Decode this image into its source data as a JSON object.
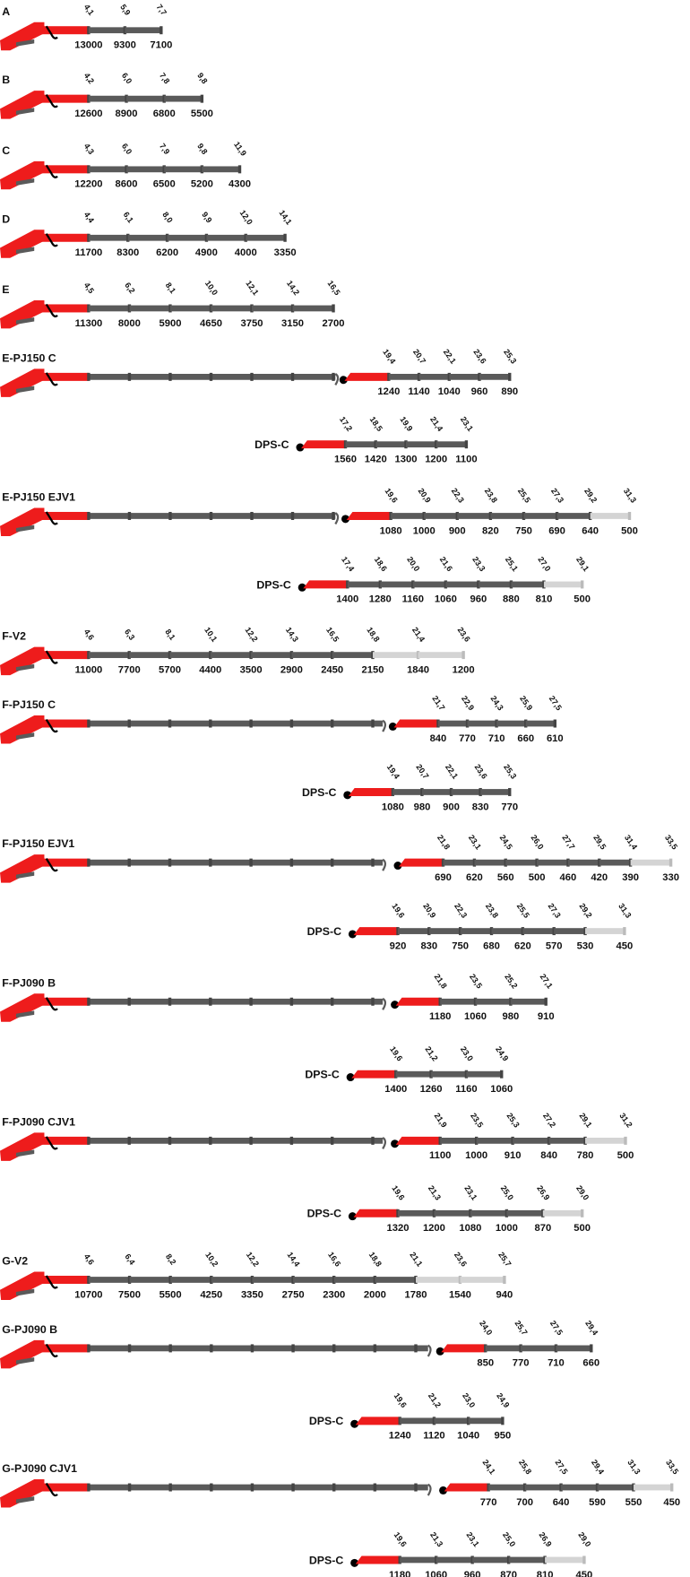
{
  "sections": [
    {
      "label": "A",
      "segments": [
        {
          "reach": "4,1",
          "load": 13000
        },
        {
          "reach": "5,9",
          "load": 9300
        },
        {
          "reach": "7,7",
          "load": 7100
        }
      ]
    },
    {
      "label": "B",
      "segments": [
        {
          "reach": "4,2",
          "load": 12600
        },
        {
          "reach": "6,0",
          "load": 8900
        },
        {
          "reach": "7,8",
          "load": 6800
        },
        {
          "reach": "9,8",
          "load": 5500
        }
      ]
    },
    {
      "label": "C",
      "segments": [
        {
          "reach": "4,3",
          "load": 12200
        },
        {
          "reach": "6,0",
          "load": 8600
        },
        {
          "reach": "7,9",
          "load": 6500
        },
        {
          "reach": "9,8",
          "load": 5200
        },
        {
          "reach": "11,9",
          "load": 4300
        }
      ]
    },
    {
      "label": "D",
      "segments": [
        {
          "reach": "4,4",
          "load": 11700
        },
        {
          "reach": "6,1",
          "load": 8300
        },
        {
          "reach": "8,0",
          "load": 6200
        },
        {
          "reach": "9,9",
          "load": 4900
        },
        {
          "reach": "12,0",
          "load": 4000
        },
        {
          "reach": "14,1",
          "load": 3350
        }
      ]
    },
    {
      "label": "E",
      "segments": [
        {
          "reach": "4,5",
          "load": 11300
        },
        {
          "reach": "6,2",
          "load": 8000
        },
        {
          "reach": "8,1",
          "load": 5900
        },
        {
          "reach": "10,0",
          "load": 4650
        },
        {
          "reach": "12,1",
          "load": 3750
        },
        {
          "reach": "14,2",
          "load": 3150
        },
        {
          "reach": "16,5",
          "load": 2700
        }
      ]
    },
    {
      "label": "E-PJ150 C",
      "jib": {
        "segments": [
          {
            "reach": "19,4",
            "load": 1240
          },
          {
            "reach": "20,7",
            "load": 1140
          },
          {
            "reach": "22,1",
            "load": 1040
          },
          {
            "reach": "23,6",
            "load": 960
          },
          {
            "reach": "25,3",
            "load": 890
          }
        ]
      },
      "dps": {
        "label": "DPS-C",
        "segments": [
          {
            "reach": "17,2",
            "load": 1560
          },
          {
            "reach": "18,5",
            "load": 1420
          },
          {
            "reach": "19,9",
            "load": 1300
          },
          {
            "reach": "21,4",
            "load": 1200
          },
          {
            "reach": "23,1",
            "load": 1100
          }
        ]
      }
    },
    {
      "label": "E-PJ150 EJV1",
      "jib": {
        "segments": [
          {
            "reach": "19,6",
            "load": 1080
          },
          {
            "reach": "20,9",
            "load": 1000
          },
          {
            "reach": "22,3",
            "load": 900
          },
          {
            "reach": "23,8",
            "load": 820
          },
          {
            "reach": "25,5",
            "load": 750
          },
          {
            "reach": "27,3",
            "load": 690
          },
          {
            "reach": "29,2",
            "load": 640
          },
          {
            "reach": "31,3",
            "load": 500,
            "extension": true
          }
        ]
      },
      "dps": {
        "label": "DPS-C",
        "segments": [
          {
            "reach": "17,4",
            "load": 1400
          },
          {
            "reach": "18,6",
            "load": 1280
          },
          {
            "reach": "20,0",
            "load": 1160
          },
          {
            "reach": "21,6",
            "load": 1060
          },
          {
            "reach": "23,3",
            "load": 960
          },
          {
            "reach": "25,1",
            "load": 880
          },
          {
            "reach": "27,0",
            "load": 810
          },
          {
            "reach": "29,1",
            "load": 500,
            "extension": true
          }
        ]
      }
    },
    {
      "label": "F-V2",
      "segments": [
        {
          "reach": "4,6",
          "load": 11000
        },
        {
          "reach": "6,3",
          "load": 7700
        },
        {
          "reach": "8,1",
          "load": 5700
        },
        {
          "reach": "10,1",
          "load": 4400
        },
        {
          "reach": "12,2",
          "load": 3500
        },
        {
          "reach": "14,3",
          "load": 2900
        },
        {
          "reach": "16,5",
          "load": 2450
        },
        {
          "reach": "18,8",
          "load": 2150
        },
        {
          "reach": "21,4",
          "load": 1840,
          "extension": true
        },
        {
          "reach": "23,6",
          "load": 1200,
          "extension": true
        }
      ]
    },
    {
      "label": "F-PJ150 C",
      "jib": {
        "segments": [
          {
            "reach": "21,7",
            "load": 840
          },
          {
            "reach": "22,9",
            "load": 770
          },
          {
            "reach": "24,3",
            "load": 710
          },
          {
            "reach": "25,9",
            "load": 660
          },
          {
            "reach": "27,5",
            "load": 610
          }
        ]
      },
      "dps": {
        "label": "DPS-C",
        "segments": [
          {
            "reach": "19,4",
            "load": 1080
          },
          {
            "reach": "20,7",
            "load": 980
          },
          {
            "reach": "22,1",
            "load": 900
          },
          {
            "reach": "23,6",
            "load": 830
          },
          {
            "reach": "25,3",
            "load": 770
          }
        ]
      }
    },
    {
      "label": "F-PJ150 EJV1",
      "jib": {
        "segments": [
          {
            "reach": "21,8",
            "load": 690
          },
          {
            "reach": "23,1",
            "load": 620
          },
          {
            "reach": "24,5",
            "load": 560
          },
          {
            "reach": "26,0",
            "load": 500
          },
          {
            "reach": "27,7",
            "load": 460
          },
          {
            "reach": "29,5",
            "load": 420
          },
          {
            "reach": "31,4",
            "load": 390
          },
          {
            "reach": "33,5",
            "load": 330,
            "extension": true
          }
        ]
      },
      "dps": {
        "label": "DPS-C",
        "segments": [
          {
            "reach": "19,6",
            "load": 920
          },
          {
            "reach": "20,9",
            "load": 830
          },
          {
            "reach": "22,3",
            "load": 750
          },
          {
            "reach": "23,8",
            "load": 680
          },
          {
            "reach": "25,5",
            "load": 620
          },
          {
            "reach": "27,3",
            "load": 570
          },
          {
            "reach": "29,2",
            "load": 530
          },
          {
            "reach": "31,3",
            "load": 450,
            "extension": true
          }
        ]
      }
    },
    {
      "label": "F-PJ090 B",
      "jib": {
        "segments": [
          {
            "reach": "21,8",
            "load": 1180
          },
          {
            "reach": "23,5",
            "load": 1060
          },
          {
            "reach": "25,2",
            "load": 980
          },
          {
            "reach": "27,1",
            "load": 910
          }
        ]
      },
      "dps": {
        "label": "DPS-C",
        "segments": [
          {
            "reach": "19,6",
            "load": 1400
          },
          {
            "reach": "21,2",
            "load": 1260
          },
          {
            "reach": "23,0",
            "load": 1160
          },
          {
            "reach": "24,9",
            "load": 1060
          }
        ]
      }
    },
    {
      "label": "F-PJ090 CJV1",
      "jib": {
        "segments": [
          {
            "reach": "21,9",
            "load": 1100
          },
          {
            "reach": "23,5",
            "load": 1000
          },
          {
            "reach": "25,3",
            "load": 910
          },
          {
            "reach": "27,2",
            "load": 840
          },
          {
            "reach": "29,1",
            "load": 780
          },
          {
            "reach": "31,2",
            "load": 500,
            "extension": true
          }
        ]
      },
      "dps": {
        "label": "DPS-C",
        "segments": [
          {
            "reach": "19,6",
            "load": 1320
          },
          {
            "reach": "21,3",
            "load": 1200
          },
          {
            "reach": "23,1",
            "load": 1080
          },
          {
            "reach": "25,0",
            "load": 1000
          },
          {
            "reach": "26,9",
            "load": 870
          },
          {
            "reach": "29,0",
            "load": 500,
            "extension": true
          }
        ]
      }
    },
    {
      "label": "G-V2",
      "segments": [
        {
          "reach": "4,6",
          "load": 10700
        },
        {
          "reach": "6,4",
          "load": 7500
        },
        {
          "reach": "8,2",
          "load": 5500
        },
        {
          "reach": "10,2",
          "load": 4250
        },
        {
          "reach": "12,2",
          "load": 3350
        },
        {
          "reach": "14,4",
          "load": 2750
        },
        {
          "reach": "16,6",
          "load": 2300
        },
        {
          "reach": "18,8",
          "load": 2000
        },
        {
          "reach": "21,1",
          "load": 1780
        },
        {
          "reach": "23,6",
          "load": 1540,
          "extension": true
        },
        {
          "reach": "25,7",
          "load": 940,
          "extension": true
        }
      ]
    },
    {
      "label": "G-PJ090 B",
      "jib": {
        "segments": [
          {
            "reach": "24,0",
            "load": 850
          },
          {
            "reach": "25,7",
            "load": 770
          },
          {
            "reach": "27,5",
            "load": 710
          },
          {
            "reach": "29,4",
            "load": 660
          }
        ]
      },
      "dps": {
        "label": "DPS-C",
        "segments": [
          {
            "reach": "19,6",
            "load": 1240
          },
          {
            "reach": "21,2",
            "load": 1120
          },
          {
            "reach": "23,0",
            "load": 1040
          },
          {
            "reach": "24,9",
            "load": 950
          }
        ]
      }
    },
    {
      "label": "G-PJ090 CJV1",
      "jib": {
        "segments": [
          {
            "reach": "24,1",
            "load": 770
          },
          {
            "reach": "25,8",
            "load": 700
          },
          {
            "reach": "27,5",
            "load": 640
          },
          {
            "reach": "29,4",
            "load": 590
          },
          {
            "reach": "31,3",
            "load": 550
          },
          {
            "reach": "33,5",
            "load": 450,
            "extension": true
          }
        ]
      },
      "dps": {
        "label": "DPS-C",
        "segments": [
          {
            "reach": "19,6",
            "load": 1180
          },
          {
            "reach": "21,3",
            "load": 1060
          },
          {
            "reach": "23,1",
            "load": 960
          },
          {
            "reach": "25,0",
            "load": 870
          },
          {
            "reach": "26,9",
            "load": 810
          },
          {
            "reach": "29,0",
            "load": 450,
            "extension": true
          }
        ]
      }
    }
  ]
}
